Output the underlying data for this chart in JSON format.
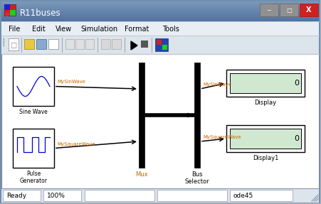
{
  "title": "R11buses",
  "titlebar_grad_top": "#8aa8c8",
  "titlebar_grad_bot": "#5070a0",
  "win_bg": "#b0b8c8",
  "canvas_color": "#ffffff",
  "menubar_color": "#e8eef4",
  "toolbar_color": "#dce4ec",
  "statusbar_color": "#dce4ec",
  "menubar_items": [
    "File",
    "Edit",
    "View",
    "Simulation",
    "Format",
    "Tools"
  ],
  "status_left": "Ready",
  "status_zoom": "100%",
  "status_solver": "ode45",
  "mux_label_color": "#cc6600",
  "signal_label_color": "#cc6600",
  "wire_color": "#000000",
  "block_border": "#000000",
  "label_color": "#000000",
  "display_inner_color": "#d0e8d0"
}
